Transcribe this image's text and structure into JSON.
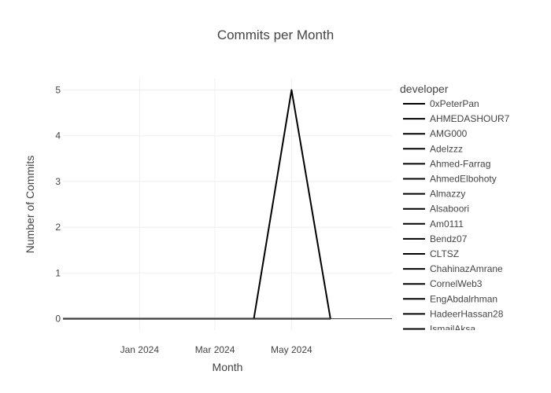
{
  "chart_data": {
    "type": "line",
    "title": "Commits per Month",
    "xlabel": "Month",
    "ylabel": "Number of Commits",
    "x_ticks": [
      {
        "date": "2024-01-01",
        "label": "Jan 2024"
      },
      {
        "date": "2024-03-01",
        "label": "Mar 2024"
      },
      {
        "date": "2024-05-01",
        "label": "May 2024"
      }
    ],
    "y_ticks": [
      0,
      1,
      2,
      3,
      4,
      5
    ],
    "xlim": [
      "2023-11-01",
      "2024-07-20"
    ],
    "ylim": [
      -0.25,
      5.25
    ],
    "grid": true,
    "legend_title": "developer",
    "legend_position": "right",
    "line_color": "#000000",
    "x": [
      "2023-11-01",
      "2023-12-01",
      "2024-01-01",
      "2024-02-01",
      "2024-03-01",
      "2024-04-01",
      "2024-05-01",
      "2024-06-01"
    ],
    "series": [
      {
        "name": "0xPeterPan",
        "values": [
          0,
          0,
          0,
          0,
          0,
          0,
          5,
          0
        ]
      },
      {
        "name": "AHMEDASHOUR7",
        "values": [
          0,
          0,
          0,
          0,
          0,
          0,
          0,
          0
        ]
      },
      {
        "name": "AMG000",
        "values": [
          0,
          0,
          0,
          0,
          0,
          0,
          0,
          0
        ]
      },
      {
        "name": "Adelzzz",
        "values": [
          0,
          0,
          0,
          0,
          0,
          0,
          0,
          0
        ]
      },
      {
        "name": "Ahmed-Farrag",
        "values": [
          0,
          0,
          0,
          0,
          0,
          0,
          0,
          0
        ]
      },
      {
        "name": "AhmedElbohoty",
        "values": [
          0,
          0,
          0,
          0,
          0,
          0,
          0,
          0
        ]
      },
      {
        "name": "Almazzy",
        "values": [
          0,
          0,
          0,
          0,
          0,
          0,
          0,
          0
        ]
      },
      {
        "name": "Alsaboori",
        "values": [
          0,
          0,
          0,
          0,
          0,
          0,
          0,
          0
        ]
      },
      {
        "name": "Am0111",
        "values": [
          0,
          0,
          0,
          0,
          0,
          0,
          0,
          0
        ]
      },
      {
        "name": "Bendz07",
        "values": [
          0,
          0,
          0,
          0,
          0,
          0,
          0,
          0
        ]
      },
      {
        "name": "CLTSZ",
        "values": [
          0,
          0,
          0,
          0,
          0,
          0,
          0,
          0
        ]
      },
      {
        "name": "ChahinazAmrane",
        "values": [
          0,
          0,
          0,
          0,
          0,
          0,
          0,
          0
        ]
      },
      {
        "name": "CornelWeb3",
        "values": [
          0,
          0,
          0,
          0,
          0,
          0,
          0,
          0
        ]
      },
      {
        "name": "EngAbdalrhman",
        "values": [
          0,
          0,
          0,
          0,
          0,
          0,
          0,
          0
        ]
      },
      {
        "name": "HadeerHassan28",
        "values": [
          0,
          0,
          0,
          0,
          0,
          0,
          0,
          0
        ]
      },
      {
        "name": "IsmailAksa",
        "values": [
          0,
          0,
          0,
          0,
          0,
          0,
          0,
          0
        ]
      }
    ]
  }
}
